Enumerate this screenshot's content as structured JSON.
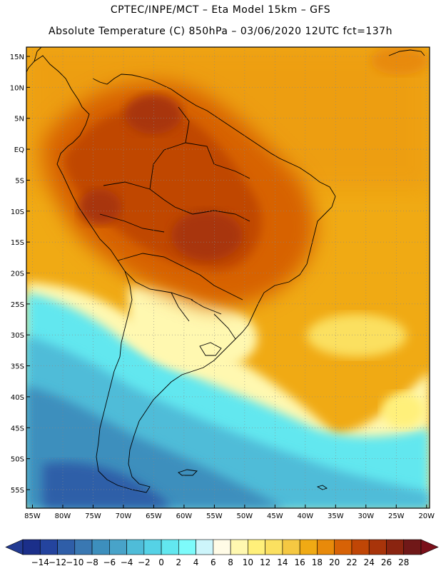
{
  "header": {
    "line1": "CPTEC/INPE/MCT –  Eta Model 15km – GFS",
    "line2": "Absolute Temperature (C) 850hPa – 03/06/2020 12UTC fct=137h"
  },
  "map": {
    "lon_range": [
      -86,
      -19.5
    ],
    "lat_range": [
      -58,
      16.5
    ],
    "lat_ticks": [
      {
        "value": 15,
        "label": "15N"
      },
      {
        "value": 10,
        "label": "10N"
      },
      {
        "value": 5,
        "label": "5N"
      },
      {
        "value": 0,
        "label": "EQ"
      },
      {
        "value": -5,
        "label": "5S"
      },
      {
        "value": -10,
        "label": "10S"
      },
      {
        "value": -15,
        "label": "15S"
      },
      {
        "value": -20,
        "label": "20S"
      },
      {
        "value": -25,
        "label": "25S"
      },
      {
        "value": -30,
        "label": "30S"
      },
      {
        "value": -35,
        "label": "35S"
      },
      {
        "value": -40,
        "label": "40S"
      },
      {
        "value": -45,
        "label": "45S"
      },
      {
        "value": -50,
        "label": "50S"
      },
      {
        "value": -55,
        "label": "55S"
      }
    ],
    "lon_ticks": [
      {
        "value": -85,
        "label": "85W"
      },
      {
        "value": -80,
        "label": "80W"
      },
      {
        "value": -75,
        "label": "75W"
      },
      {
        "value": -70,
        "label": "70W"
      },
      {
        "value": -65,
        "label": "65W"
      },
      {
        "value": -60,
        "label": "60W"
      },
      {
        "value": -55,
        "label": "55W"
      },
      {
        "value": -50,
        "label": "50W"
      },
      {
        "value": -45,
        "label": "45W"
      },
      {
        "value": -40,
        "label": "40W"
      },
      {
        "value": -35,
        "label": "35W"
      },
      {
        "value": -30,
        "label": "30W"
      },
      {
        "value": -25,
        "label": "25W"
      },
      {
        "value": -20,
        "label": "20W"
      }
    ],
    "grid": "dotted"
  },
  "colorbar": {
    "labels": [
      "-14",
      "-12",
      "-10",
      "-8",
      "-6",
      "-4",
      "-2",
      "0",
      "2",
      "4",
      "6",
      "8",
      "10",
      "12",
      "14",
      "16",
      "18",
      "20",
      "22",
      "24",
      "26",
      "28"
    ],
    "colors": [
      "#1b2f8a",
      "#24449e",
      "#2f5ea8",
      "#3a78b2",
      "#3d8fbd",
      "#48a3c9",
      "#4fbcd8",
      "#55d2e6",
      "#62e7ef",
      "#7dfbfb",
      "#cdf5fb",
      "#fffbe6",
      "#fff8b0",
      "#fff07a",
      "#fbe060",
      "#f5c842",
      "#f0aa14",
      "#e88a0a",
      "#d76206",
      "#c04606",
      "#a8340a",
      "#8a2410",
      "#701818"
    ],
    "min_color": "#223a92",
    "max_color": "#7a0f1a"
  }
}
